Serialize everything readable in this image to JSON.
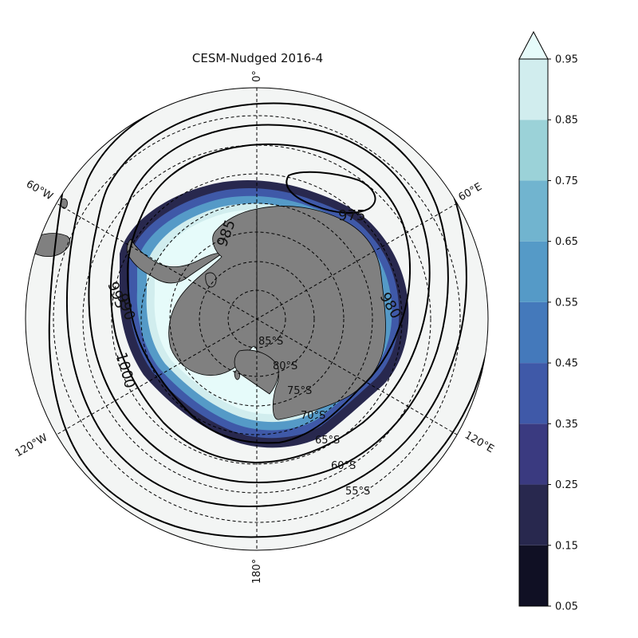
{
  "title": "CESM-Nudged 2016-4",
  "map": {
    "projection": "south polar stereographic",
    "longitude_labels": [
      {
        "key": "lon0",
        "text": "0°"
      },
      {
        "key": "lon60e",
        "text": "60°E"
      },
      {
        "key": "lon120e",
        "text": "120°E"
      },
      {
        "key": "lon180",
        "text": "180°"
      },
      {
        "key": "lon120w",
        "text": "120°W"
      },
      {
        "key": "lon60w",
        "text": "60°W"
      }
    ],
    "latitude_labels": [
      "85°S",
      "80°S",
      "75°S",
      "70°S",
      "65°S",
      "60°S",
      "55°S"
    ],
    "contour_labels": [
      "975",
      "980",
      "985",
      "990",
      "995",
      "1000"
    ],
    "colors": {
      "ocean": "#f3f5f4",
      "land": "#808080",
      "contour": "#000000",
      "grid": "#000000"
    }
  },
  "colorbar": {
    "ticks": [
      "0.95",
      "0.85",
      "0.75",
      "0.65",
      "0.55",
      "0.45",
      "0.35",
      "0.25",
      "0.15",
      "0.05"
    ],
    "levels": [
      0.05,
      0.15,
      0.25,
      0.35,
      0.45,
      0.55,
      0.65,
      0.75,
      0.85,
      0.95
    ],
    "colors": [
      "#101024",
      "#28284e",
      "#3a3a80",
      "#3f59a8",
      "#4479bb",
      "#559ac7",
      "#71b4cf",
      "#9bd2d8",
      "#d1edee",
      "#e6fbfa"
    ],
    "extend": "max"
  },
  "chart_data": {
    "type": "heatmap",
    "title": "CESM-Nudged 2016-4",
    "colorbar_range": [
      0.05,
      0.95
    ],
    "colorbar_levels": [
      0.05,
      0.15,
      0.25,
      0.35,
      0.45,
      0.55,
      0.65,
      0.75,
      0.85,
      0.95
    ],
    "contour_levels": [
      975,
      980,
      985,
      990,
      995,
      1000
    ],
    "latitude_circles": [
      85,
      80,
      75,
      70,
      65,
      60,
      55
    ],
    "longitude_lines": [
      0,
      60,
      120,
      180,
      -120,
      -60
    ]
  }
}
